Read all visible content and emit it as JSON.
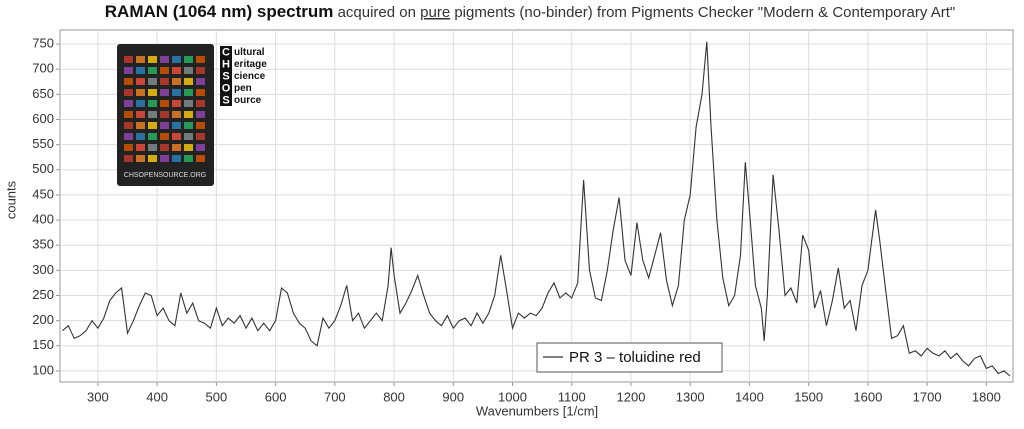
{
  "chart_data": {
    "type": "line",
    "title_bold": "RAMAN (1064 nm) spectrum",
    "title_pre": "acquired on",
    "title_underlined": "pure",
    "title_post": "pigments (no-binder) from Pigments Checker \"Modern & Contemporary Art\"",
    "x_label": "Wavenumbers [1/cm]",
    "y_label": "counts",
    "xlim": [
      236,
      1845
    ],
    "ylim": [
      78,
      778
    ],
    "xticks": [
      300,
      400,
      500,
      600,
      700,
      800,
      900,
      1000,
      1100,
      1200,
      1300,
      1400,
      1500,
      1600,
      1700,
      1800
    ],
    "yticks": [
      100,
      150,
      200,
      250,
      300,
      350,
      400,
      450,
      500,
      550,
      600,
      650,
      700,
      750
    ],
    "grid": true,
    "legend": "bottom-center",
    "logo": {
      "letters": [
        "C",
        "H",
        "S",
        "O",
        "S"
      ],
      "words": [
        "ultural",
        "eritage",
        "cience",
        "pen",
        "ource"
      ]
    },
    "card_text": "CHSOPENSOURCE.ORG",
    "x": [
      240,
      250,
      260,
      270,
      280,
      290,
      300,
      310,
      320,
      330,
      340,
      350,
      360,
      370,
      380,
      390,
      400,
      410,
      420,
      430,
      440,
      450,
      460,
      470,
      480,
      490,
      500,
      510,
      520,
      530,
      540,
      550,
      560,
      570,
      580,
      590,
      600,
      610,
      620,
      630,
      640,
      650,
      660,
      670,
      680,
      690,
      700,
      710,
      720,
      730,
      740,
      750,
      760,
      770,
      780,
      790,
      795,
      800,
      810,
      820,
      830,
      840,
      850,
      860,
      870,
      880,
      890,
      900,
      910,
      920,
      930,
      940,
      950,
      960,
      970,
      980,
      990,
      1000,
      1010,
      1020,
      1030,
      1040,
      1050,
      1060,
      1070,
      1080,
      1090,
      1100,
      1110,
      1120,
      1130,
      1140,
      1150,
      1160,
      1170,
      1180,
      1190,
      1200,
      1210,
      1220,
      1230,
      1240,
      1250,
      1260,
      1270,
      1280,
      1290,
      1300,
      1310,
      1320,
      1328,
      1335,
      1345,
      1355,
      1365,
      1375,
      1385,
      1393,
      1400,
      1410,
      1420,
      1425,
      1430,
      1440,
      1450,
      1460,
      1470,
      1480,
      1490,
      1500,
      1510,
      1520,
      1530,
      1540,
      1550,
      1560,
      1570,
      1580,
      1590,
      1600,
      1613,
      1620,
      1630,
      1640,
      1650,
      1660,
      1670,
      1680,
      1690,
      1700,
      1710,
      1720,
      1730,
      1740,
      1750,
      1760,
      1770,
      1780,
      1790,
      1800,
      1810,
      1820,
      1830,
      1840
    ],
    "series": [
      {
        "name": "PR 3 – toluidine red",
        "color": "#333333",
        "values": [
          180,
          190,
          165,
          170,
          180,
          200,
          185,
          205,
          240,
          255,
          265,
          175,
          200,
          230,
          255,
          250,
          210,
          225,
          200,
          190,
          255,
          215,
          235,
          200,
          195,
          185,
          225,
          190,
          205,
          195,
          210,
          185,
          205,
          180,
          195,
          180,
          200,
          265,
          255,
          215,
          195,
          185,
          160,
          150,
          205,
          185,
          200,
          230,
          270,
          200,
          215,
          185,
          200,
          215,
          200,
          270,
          345,
          290,
          215,
          235,
          260,
          290,
          250,
          215,
          200,
          190,
          210,
          185,
          200,
          205,
          190,
          215,
          195,
          215,
          250,
          330,
          260,
          185,
          215,
          205,
          215,
          210,
          225,
          255,
          275,
          245,
          255,
          245,
          275,
          480,
          300,
          245,
          240,
          300,
          380,
          445,
          320,
          290,
          395,
          320,
          285,
          330,
          375,
          280,
          230,
          270,
          400,
          450,
          585,
          650,
          755,
          590,
          400,
          285,
          230,
          250,
          330,
          515,
          420,
          270,
          225,
          160,
          245,
          490,
          380,
          250,
          265,
          235,
          370,
          340,
          225,
          260,
          190,
          240,
          305,
          225,
          240,
          180,
          270,
          300,
          420,
          360,
          260,
          165,
          170,
          190,
          135,
          140,
          130,
          145,
          135,
          130,
          140,
          125,
          135,
          120,
          110,
          125,
          130,
          105,
          110,
          95,
          100,
          90
        ]
      }
    ]
  }
}
